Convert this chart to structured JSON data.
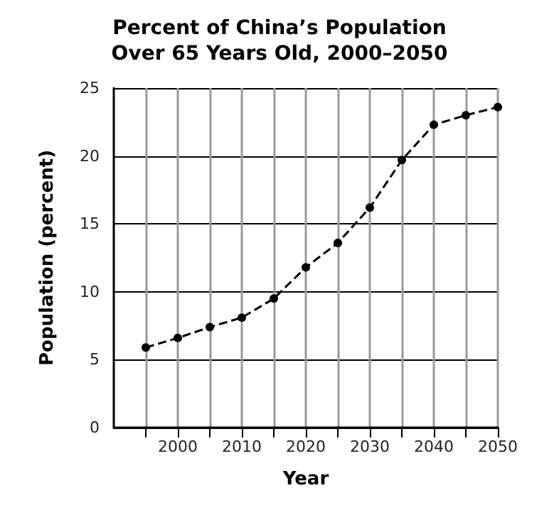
{
  "chart_data": {
    "type": "line",
    "title": "Percent of China’s Population\nOver 65 Years Old, 2000–2050",
    "xlabel": "Year",
    "ylabel": "Population (percent)",
    "x": [
      1995,
      2000,
      2005,
      2010,
      2015,
      2020,
      2025,
      2030,
      2035,
      2040,
      2045,
      2050
    ],
    "series": [
      {
        "color": "#000000",
        "values": [
          5.9,
          6.6,
          7.4,
          8.1,
          9.5,
          11.8,
          13.6,
          16.2,
          19.7,
          22.3,
          23.0,
          23.6
        ]
      }
    ],
    "xlim": [
      1990,
      2050
    ],
    "xticks": [
      {
        "value": 1995,
        "label": null
      },
      2000,
      {
        "value": 2005,
        "label": null
      },
      2010,
      {
        "value": 2015,
        "label": null
      },
      2020,
      {
        "value": 2025,
        "label": null
      },
      2030,
      {
        "value": 2035,
        "label": null
      },
      2040,
      {
        "value": 2045,
        "label": null
      },
      2050
    ],
    "ylim": [
      0,
      25
    ],
    "yticks": [
      0,
      5,
      10,
      15,
      20,
      25
    ],
    "grid": true,
    "marker": "circle",
    "line_style": "dashed"
  }
}
